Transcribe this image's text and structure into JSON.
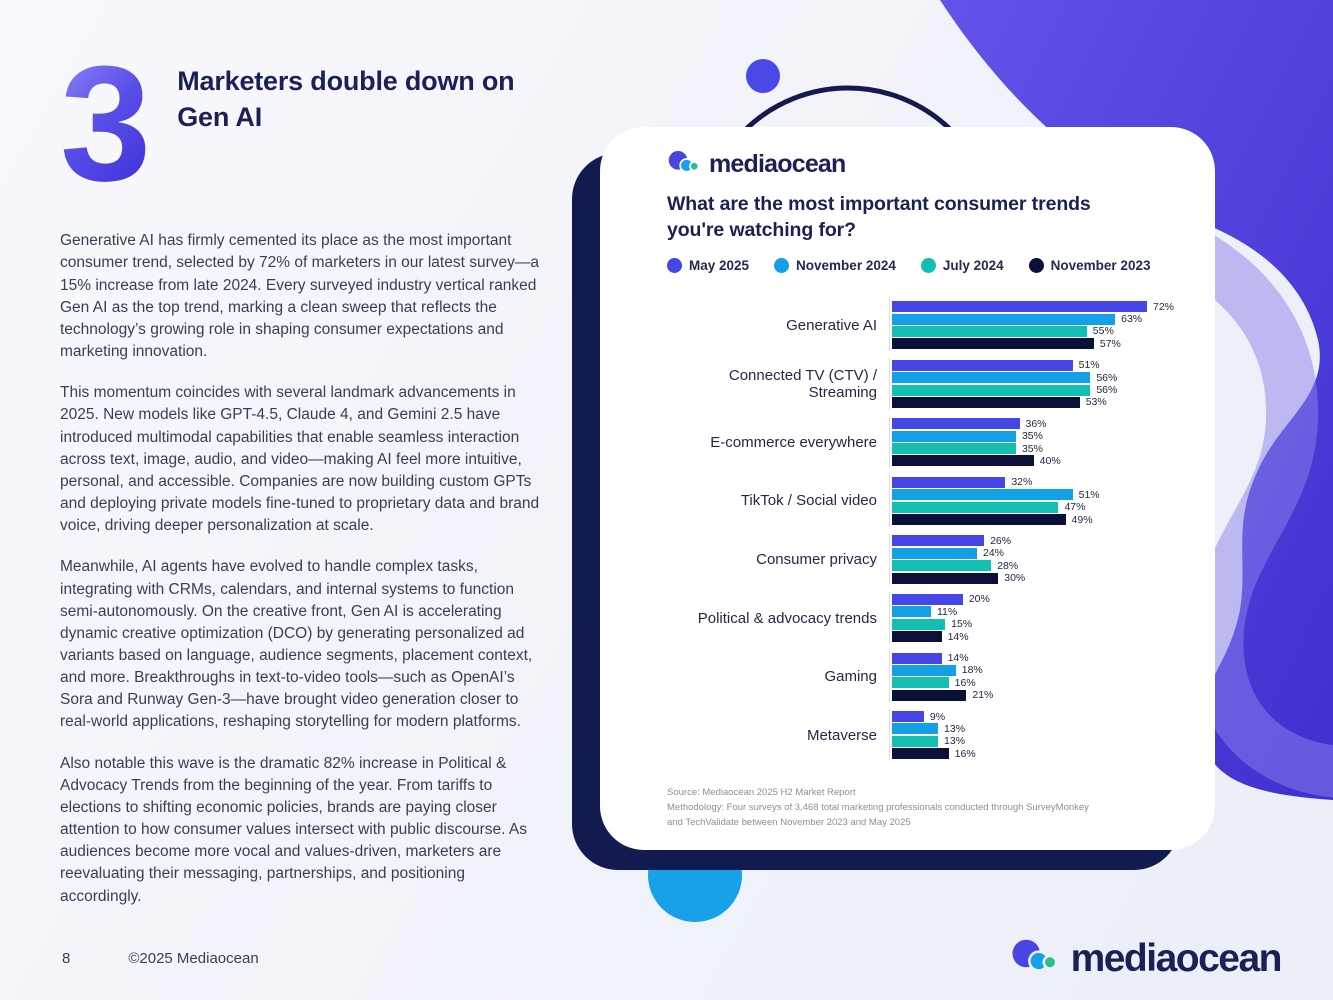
{
  "page": {
    "section_number": "3",
    "heading": "Marketers double down on Gen AI",
    "paragraphs": [
      "Generative AI has firmly cemented its place as the most important consumer trend, selected by 72% of marketers in our latest survey—a 15% increase from late 2024. Every surveyed industry vertical ranked Gen AI as the top trend, marking a clean sweep that reflects the technology’s growing role in shaping consumer expectations and marketing innovation.",
      "This momentum coincides with several landmark advancements in 2025. New models like GPT-4.5, Claude 4, and Gemini 2.5 have introduced multimodal capabilities that enable seamless interaction across text, image, audio, and video—making AI feel more intuitive, personal, and accessible. Companies are now building custom GPTs and deploying private models fine-tuned to proprietary data and brand voice, driving deeper personalization at scale.",
      "Meanwhile, AI agents have evolved to handle complex tasks, integrating with CRMs, calendars, and internal systems to function semi-autonomously. On the creative front, Gen AI is accelerating dynamic creative optimization (DCO) by generating personalized ad variants based on language, audience segments, placement context, and more. Breakthroughs in text-to-video tools—such as OpenAI’s Sora and Runway Gen-3—have brought video generation closer to real-world applications, reshaping storytelling for modern platforms.",
      "Also notable this wave is the dramatic 82% increase in Political & Advocacy Trends from the beginning of the year. From tariffs to elections to shifting economic policies, brands are paying closer attention to how consumer values intersect with public discourse. As audiences become more vocal and values-driven, marketers are reevaluating their messaging, partnerships, and positioning accordingly."
    ],
    "footer": {
      "page_number": "8",
      "copyright": "©2025 Mediaocean",
      "brand_logo_text": "mediaocean"
    }
  },
  "card": {
    "logo_text": "mediaocean",
    "title": "What are the most important consumer trends you're watching for?",
    "source_lines": [
      "Source: Mediaocean 2025 H2 Market Report",
      "Methodology: Four surveys of 3,468 total marketing professionals conducted through SurveyMonkey",
      "and TechValidate between November 2023 and May 2025"
    ]
  },
  "icons": {
    "logo_mark": "mediaocean-wave-mark"
  },
  "colors": {
    "heading_navy": "#1B2156",
    "body_text": "#3A3E52",
    "card_shadow_navy": "#131A4F",
    "decor_blue_circle": "#18A0E8",
    "decor_purple": "#5244E0",
    "may_2025": "#4645E6",
    "november_2024": "#14A0E6",
    "july_2024": "#12BFB2",
    "november_2023": "#0B1038"
  },
  "chart_data": {
    "type": "bar",
    "orientation": "horizontal",
    "title": "What are the most important consumer trends you're watching for?",
    "unit": "%",
    "xlim": [
      0,
      80
    ],
    "grid": false,
    "legend_position": "top",
    "categories": [
      "Generative AI",
      "Connected TV (CTV) / Streaming",
      "E-commerce everywhere",
      "TikTok / Social video",
      "Consumer privacy",
      "Political & advocacy trends",
      "Gaming",
      "Metaverse"
    ],
    "series": [
      {
        "name": "May 2025",
        "color": "#4645E6",
        "values": [
          72,
          51,
          36,
          32,
          26,
          20,
          14,
          9
        ]
      },
      {
        "name": "November 2024",
        "color": "#14A0E6",
        "values": [
          63,
          56,
          35,
          51,
          24,
          11,
          18,
          13
        ]
      },
      {
        "name": "July 2024",
        "color": "#12BFB2",
        "values": [
          55,
          56,
          35,
          47,
          28,
          15,
          16,
          13
        ]
      },
      {
        "name": "November 2023",
        "color": "#0B1038",
        "values": [
          57,
          53,
          40,
          49,
          30,
          14,
          21,
          16
        ]
      }
    ]
  }
}
